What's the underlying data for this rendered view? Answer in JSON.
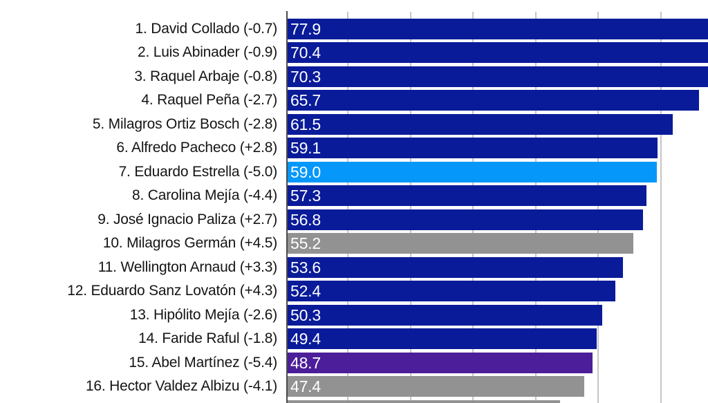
{
  "chart_data": {
    "type": "bar",
    "orientation": "horizontal",
    "title": "",
    "xlabel": "",
    "ylabel": "",
    "xlim": [
      0,
      67.2
    ],
    "grid": true,
    "gridline_values": [
      10,
      20,
      30,
      40,
      50,
      60
    ],
    "value_labels_inside_bars": true,
    "colors": {
      "navy": "#0a1b99",
      "light_blue": "#0598fa",
      "gray": "#929292",
      "purple": "#4c1e99",
      "axis_line": "#4a4a4a",
      "gridline": "#c5c5ca",
      "label_text": "#141414",
      "value_text": "#ffffff"
    },
    "items": [
      {
        "rank": 1,
        "name": "David Collado",
        "change": "-0.7",
        "label": "1. David Collado (-0.7)",
        "value": 77.9,
        "display_value": "77.9",
        "color": "navy"
      },
      {
        "rank": 2,
        "name": "Luis Abinader",
        "change": "-0.9",
        "label": "2. Luis Abinader (-0.9)",
        "value": 70.4,
        "display_value": "70.4",
        "color": "navy"
      },
      {
        "rank": 3,
        "name": "Raquel Arbaje",
        "change": "-0.8",
        "label": "3. Raquel Arbaje (-0.8)",
        "value": 70.3,
        "display_value": "70.3",
        "color": "navy"
      },
      {
        "rank": 4,
        "name": "Raquel Peña",
        "change": "-2.7",
        "label": "4. Raquel Peña (-2.7)",
        "value": 65.7,
        "display_value": "65.7",
        "color": "navy"
      },
      {
        "rank": 5,
        "name": "Milagros Ortiz Bosch",
        "change": "-2.8",
        "label": "5. Milagros Ortiz Bosch (-2.8)",
        "value": 61.5,
        "display_value": "61.5",
        "color": "navy"
      },
      {
        "rank": 6,
        "name": "Alfredo Pacheco",
        "change": "+2.8",
        "label": "6. Alfredo Pacheco (+2.8)",
        "value": 59.1,
        "display_value": "59.1",
        "color": "navy"
      },
      {
        "rank": 7,
        "name": "Eduardo Estrella",
        "change": "-5.0",
        "label": "7. Eduardo Estrella (-5.0)",
        "value": 59.0,
        "display_value": "59.0",
        "color": "light_blue"
      },
      {
        "rank": 8,
        "name": "Carolina Mejía",
        "change": "-4.4",
        "label": "8. Carolina Mejía (-4.4)",
        "value": 57.3,
        "display_value": "57.3",
        "color": "navy"
      },
      {
        "rank": 9,
        "name": "José Ignacio Paliza",
        "change": "+2.7",
        "label": "9. José Ignacio Paliza (+2.7)",
        "value": 56.8,
        "display_value": "56.8",
        "color": "navy"
      },
      {
        "rank": 10,
        "name": "Milagros Germán",
        "change": "+4.5",
        "label": "10. Milagros Germán (+4.5)",
        "value": 55.2,
        "display_value": "55.2",
        "color": "gray"
      },
      {
        "rank": 11,
        "name": "Wellington Arnaud",
        "change": "+3.3",
        "label": "11. Wellington Arnaud (+3.3)",
        "value": 53.6,
        "display_value": "53.6",
        "color": "navy"
      },
      {
        "rank": 12,
        "name": "Eduardo Sanz Lovatón",
        "change": "+4.3",
        "label": "12. Eduardo Sanz Lovatón (+4.3)",
        "value": 52.4,
        "display_value": "52.4",
        "color": "navy"
      },
      {
        "rank": 13,
        "name": "Hipólito Mejía",
        "change": "-2.6",
        "label": "13. Hipólito Mejía (-2.6)",
        "value": 50.3,
        "display_value": "50.3",
        "color": "navy"
      },
      {
        "rank": 14,
        "name": "Faride Raful",
        "change": "-1.8",
        "label": "14. Faride Raful (-1.8)",
        "value": 49.4,
        "display_value": "49.4",
        "color": "navy"
      },
      {
        "rank": 15,
        "name": "Abel Martínez",
        "change": "-5.4",
        "label": "15. Abel Martínez (-5.4)",
        "value": 48.7,
        "display_value": "48.7",
        "color": "purple"
      },
      {
        "rank": 16,
        "name": "Hector Valdez Albizu",
        "change": "-4.1",
        "label": "16. Hector Valdez Albizu (-4.1)",
        "value": 47.4,
        "display_value": "47.4",
        "color": "gray"
      },
      {
        "rank": 17,
        "name": "",
        "change": "",
        "label": "",
        "value": 43.5,
        "display_value": "",
        "color": "gray",
        "cut_off": true
      }
    ]
  }
}
